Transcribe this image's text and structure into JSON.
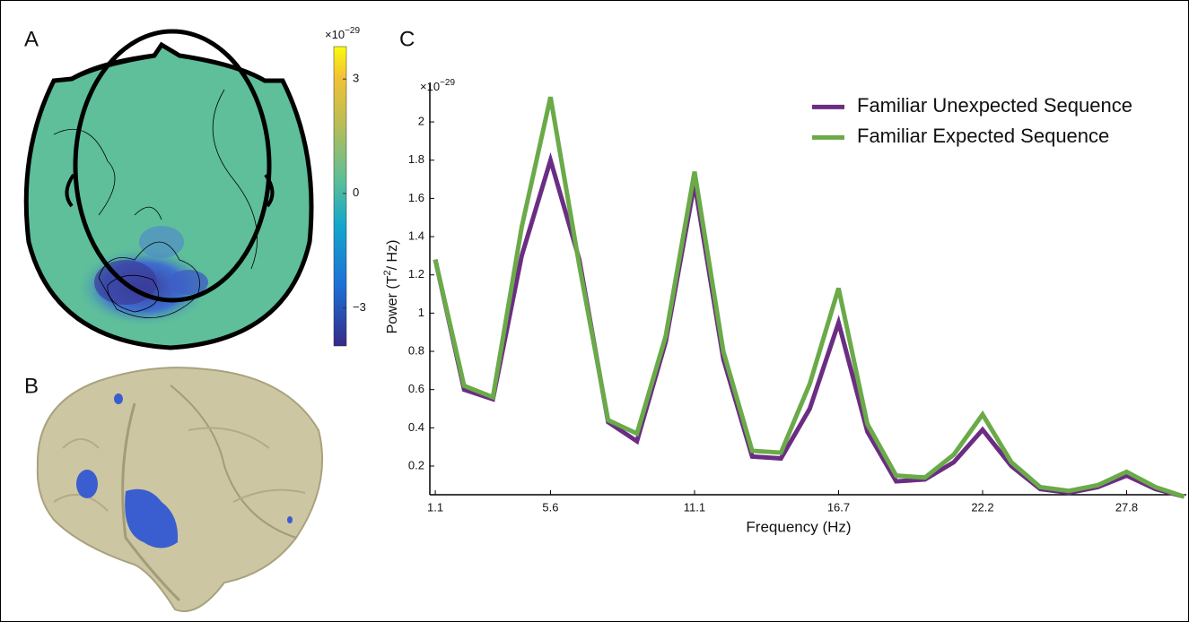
{
  "panel_labels": [
    "A",
    "B",
    "C"
  ],
  "colorbar": {
    "multiplier": "×10",
    "exponent": "−29",
    "lim": [
      -4.0,
      3.85
    ],
    "ticks": [
      3,
      0,
      {
        "value": -3,
        "label": "−3"
      }
    ]
  },
  "chart_data": {
    "type": "line",
    "y_label_parts": [
      "Power (T",
      "2",
      "/ Hz)"
    ],
    "x_label": "Frequency (Hz)",
    "y_multiplier": "×10",
    "y_exponent": "−29",
    "x": [
      1.11,
      2.22,
      3.33,
      4.44,
      5.55,
      6.66,
      7.77,
      8.88,
      9.99,
      11.1,
      12.21,
      13.32,
      14.43,
      15.54,
      16.65,
      17.76,
      18.87,
      19.98,
      21.09,
      22.2,
      23.31,
      24.42,
      25.53,
      26.64,
      27.75,
      28.86,
      29.97
    ],
    "series": [
      {
        "name": "Familiar Unexpected Sequence",
        "color": "#6b2d83",
        "values": [
          1.28,
          0.6,
          0.55,
          1.3,
          1.8,
          1.28,
          0.43,
          0.33,
          0.85,
          1.68,
          0.76,
          0.25,
          0.24,
          0.5,
          0.95,
          0.38,
          0.12,
          0.13,
          0.22,
          0.39,
          0.2,
          0.08,
          0.06,
          0.09,
          0.15,
          0.08,
          0.04
        ]
      },
      {
        "name": "Familiar Expected Sequence",
        "color": "#6aaa48",
        "values": [
          1.28,
          0.62,
          0.56,
          1.45,
          2.13,
          1.25,
          0.44,
          0.37,
          0.88,
          1.74,
          0.8,
          0.28,
          0.27,
          0.63,
          1.13,
          0.42,
          0.15,
          0.14,
          0.26,
          0.47,
          0.22,
          0.09,
          0.07,
          0.1,
          0.17,
          0.09,
          0.04
        ]
      }
    ],
    "xlim": [
      0.9,
      30.05
    ],
    "ylim": [
      0.05,
      2.2
    ],
    "xticks": [
      {
        "value": 1.11,
        "label": "1.1"
      },
      {
        "value": 5.55,
        "label": "5.6"
      },
      11.1,
      {
        "value": 16.65,
        "label": "16.7"
      },
      22.2,
      {
        "value": 27.75,
        "label": "27.8"
      }
    ],
    "yticks": [
      0.2,
      0.4,
      0.6,
      0.8,
      1,
      1.2,
      1.4,
      1.6,
      1.8,
      2
    ],
    "legend": "upper right",
    "grid": false
  }
}
